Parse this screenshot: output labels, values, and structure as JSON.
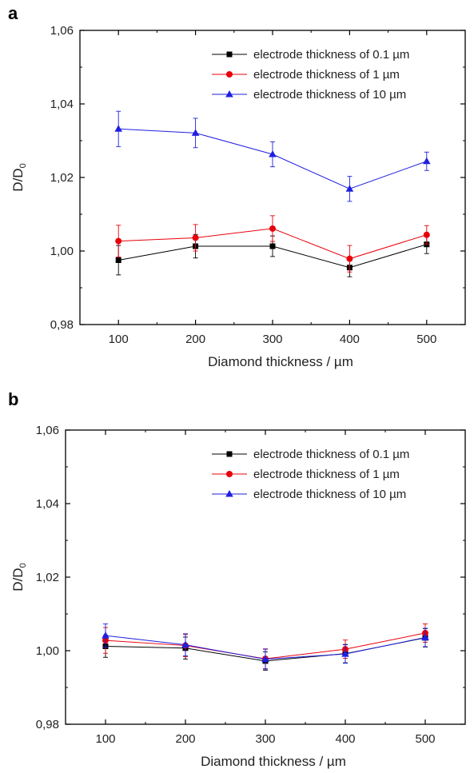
{
  "chart_data": [
    {
      "panel_label": "a",
      "type": "line",
      "xlabel": "Diamond thickness / µm",
      "ylabel": "D/D",
      "ylabel_sub": "0",
      "x": [
        100,
        200,
        300,
        400,
        500
      ],
      "x_ticks": [
        "100",
        "200",
        "300",
        "400",
        "500"
      ],
      "y_ticks": [
        "0,98",
        "1,00",
        "1,02",
        "1,04",
        "1,06"
      ],
      "y_tick_values": [
        0.98,
        1.0,
        1.02,
        1.04,
        1.06
      ],
      "xlim": [
        50,
        550
      ],
      "ylim": [
        0.98,
        1.06
      ],
      "legend_position": "top-right",
      "series": [
        {
          "name": "electrode thickness of 0.1 µm",
          "color": "#000000",
          "marker": "square",
          "values": [
            0.9975,
            1.0013,
            1.0013,
            0.9955,
            1.0018
          ],
          "errors": [
            0.004,
            0.0032,
            0.0028,
            0.0025,
            0.0025
          ]
        },
        {
          "name": "electrode thickness of 1 µm",
          "color": "#e8000b",
          "marker": "circle",
          "values": [
            1.0027,
            1.0036,
            1.0061,
            0.9979,
            1.0044
          ],
          "errors": [
            0.0043,
            0.0036,
            0.0035,
            0.0036,
            0.0025
          ]
        },
        {
          "name": "electrode thickness of 10 µm",
          "color": "#1f1fe0",
          "marker": "triangle",
          "values": [
            1.0332,
            1.0321,
            1.0263,
            1.0169,
            1.0244
          ],
          "errors": [
            0.0048,
            0.004,
            0.0034,
            0.0034,
            0.0025
          ]
        }
      ]
    },
    {
      "panel_label": "b",
      "type": "line",
      "xlabel": "Diamond thickness / µm",
      "ylabel": "D/D",
      "ylabel_sub": "0",
      "x": [
        100,
        200,
        300,
        400,
        500
      ],
      "x_ticks": [
        "100",
        "200",
        "300",
        "400",
        "500"
      ],
      "y_ticks": [
        "0,98",
        "1,00",
        "1,02",
        "1,04",
        "1,06"
      ],
      "y_tick_values": [
        0.98,
        1.0,
        1.02,
        1.04,
        1.06
      ],
      "xlim": [
        50,
        550
      ],
      "ylim": [
        0.98,
        1.06
      ],
      "legend_position": "top-right",
      "series": [
        {
          "name": "electrode thickness of 0.1 µm",
          "color": "#000000",
          "marker": "square",
          "values": [
            1.0012,
            1.0007,
            0.9972,
            0.9992,
            1.0035
          ],
          "errors": [
            0.003,
            0.003,
            0.0025,
            0.0025,
            0.0025
          ]
        },
        {
          "name": "electrode thickness of 1 µm",
          "color": "#e8000b",
          "marker": "circle",
          "values": [
            1.0028,
            1.0014,
            0.9978,
            1.0004,
            1.0048
          ],
          "errors": [
            0.0035,
            0.003,
            0.0027,
            0.0025,
            0.0025
          ]
        },
        {
          "name": "electrode thickness of 10 µm",
          "color": "#1f1fe0",
          "marker": "triangle",
          "values": [
            1.0041,
            1.0016,
            0.9977,
            0.9991,
            1.0036
          ],
          "errors": [
            0.0032,
            0.003,
            0.0027,
            0.0025,
            0.0025
          ]
        }
      ]
    }
  ]
}
